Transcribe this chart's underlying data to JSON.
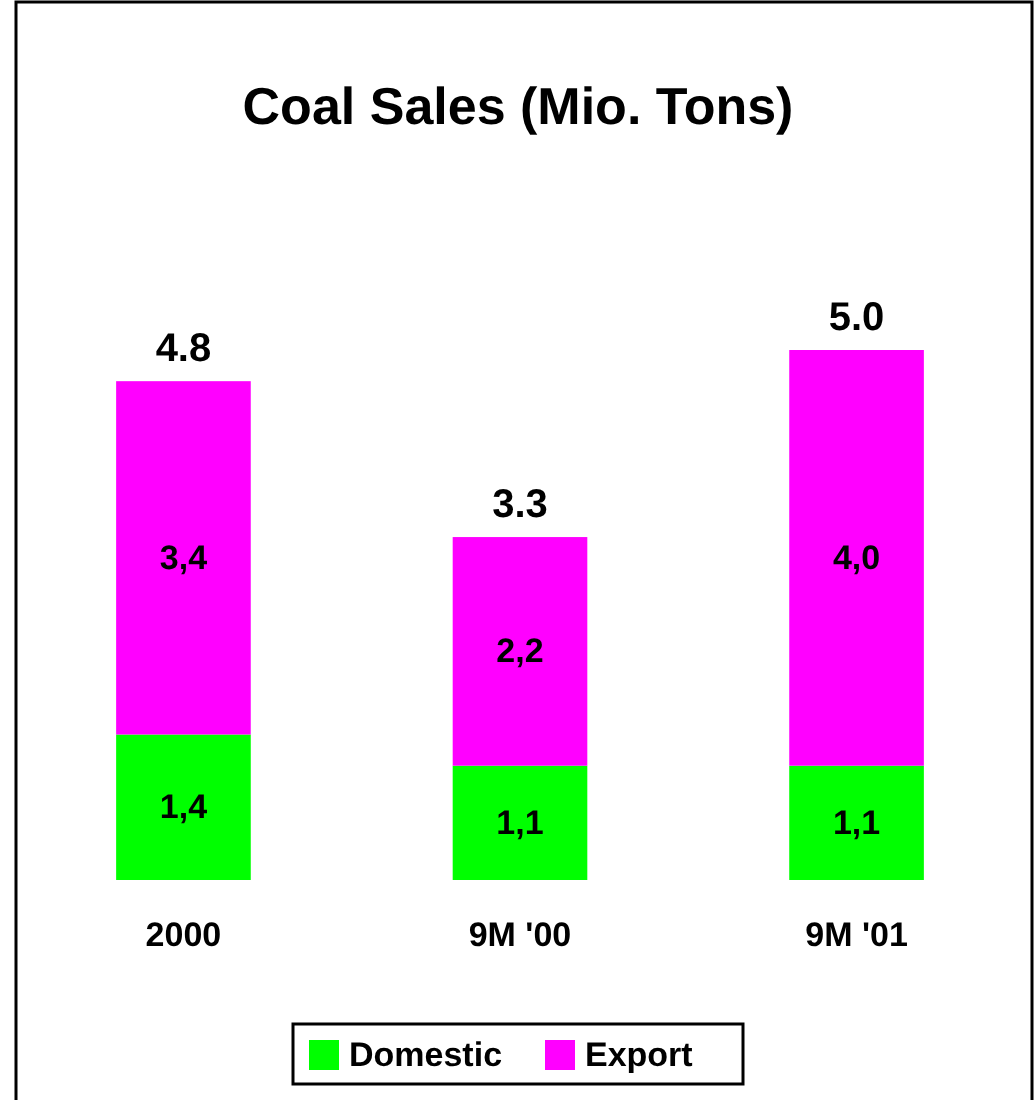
{
  "chart_data": {
    "type": "bar",
    "title": "Coal Sales (Mio. Tons)",
    "categories": [
      "2000",
      "9M '00",
      "9M '01"
    ],
    "stacked": true,
    "legend": "bottom",
    "series": [
      {
        "name": "Domestic",
        "color": "#00ff00",
        "values": [
          1.4,
          1.1,
          1.1
        ],
        "value_labels": [
          "1,4",
          "1,1",
          "1,1"
        ]
      },
      {
        "name": "Export",
        "color": "#ff00ff",
        "values": [
          3.4,
          2.2,
          4.0
        ],
        "value_labels": [
          "3,4",
          "2,2",
          "4,0"
        ]
      }
    ],
    "totals": [
      "4.8",
      "3.3",
      "5.0"
    ]
  }
}
